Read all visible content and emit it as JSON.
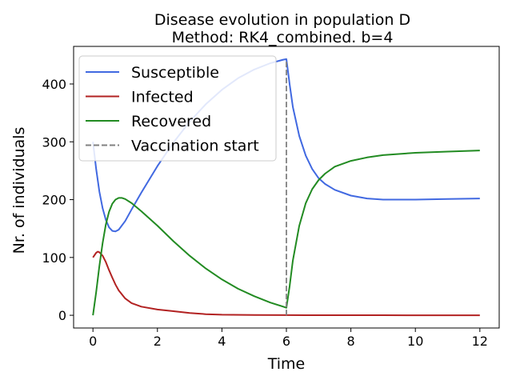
{
  "chart_data": {
    "type": "line",
    "title_line1": "Disease evolution in population D",
    "title_line2": "Method: RK4_combined. b=4",
    "xlabel": "Time",
    "ylabel": "Nr. of individuals",
    "xlim": [
      -0.6,
      12.6
    ],
    "ylim": [
      -22,
      465
    ],
    "xticks": [
      0,
      2,
      4,
      6,
      8,
      10,
      12
    ],
    "yticks": [
      0,
      100,
      200,
      300,
      400
    ],
    "grid": false,
    "legend_position": "top-left",
    "series": [
      {
        "name": "Susceptible",
        "color": "#4169e1",
        "x": [
          0,
          0.1,
          0.2,
          0.3,
          0.4,
          0.5,
          0.6,
          0.7,
          0.8,
          1.0,
          1.2,
          1.5,
          2.0,
          2.5,
          3.0,
          3.5,
          4.0,
          4.5,
          5.0,
          5.5,
          5.9,
          6.0,
          6.1,
          6.2,
          6.4,
          6.6,
          6.8,
          7.0,
          7.2,
          7.5,
          8.0,
          8.5,
          9.0,
          9.5,
          10.0,
          11.0,
          12.0
        ],
        "y": [
          300,
          253,
          214,
          185,
          165,
          152,
          146,
          145,
          148,
          163,
          183,
          212,
          258,
          299,
          335,
          365,
          390,
          410,
          425,
          436,
          442,
          443,
          400,
          360,
          310,
          276,
          253,
          237,
          227,
          217,
          207,
          202,
          200,
          200,
          200,
          201,
          202
        ]
      },
      {
        "name": "Infected",
        "color": "#b22222",
        "x": [
          0,
          0.1,
          0.15,
          0.2,
          0.3,
          0.4,
          0.5,
          0.6,
          0.7,
          0.8,
          1.0,
          1.2,
          1.5,
          2.0,
          2.5,
          3.0,
          3.5,
          4.0,
          5.0,
          6.0,
          7.0,
          8.0,
          9.0,
          10.0,
          11.0,
          12.0
        ],
        "y": [
          100,
          108,
          110,
          109,
          103,
          92,
          78,
          65,
          53,
          43,
          29,
          21,
          15,
          10,
          7,
          4,
          2,
          1,
          0.5,
          0.3,
          0.2,
          0.1,
          0.1,
          0,
          0,
          0
        ]
      },
      {
        "name": "Recovered",
        "color": "#228b22",
        "x": [
          0,
          0.1,
          0.2,
          0.3,
          0.4,
          0.5,
          0.6,
          0.7,
          0.8,
          0.9,
          1.0,
          1.2,
          1.5,
          2.0,
          2.5,
          3.0,
          3.5,
          4.0,
          4.5,
          5.0,
          5.5,
          5.9,
          6.0,
          6.1,
          6.2,
          6.4,
          6.6,
          6.8,
          7.0,
          7.2,
          7.5,
          8.0,
          8.5,
          9.0,
          10.0,
          11.0,
          12.0
        ],
        "y": [
          0,
          40,
          85,
          125,
          157,
          179,
          193,
          200,
          203,
          203,
          201,
          194,
          180,
          155,
          128,
          103,
          81,
          62,
          46,
          33,
          22,
          15,
          13,
          50,
          95,
          155,
          194,
          218,
          234,
          245,
          257,
          267,
          273,
          277,
          281,
          283,
          285
        ]
      },
      {
        "name": "Vaccination start",
        "color": "#808080",
        "dashed": true,
        "x": [
          6,
          6
        ],
        "y": [
          0,
          443
        ]
      }
    ]
  }
}
